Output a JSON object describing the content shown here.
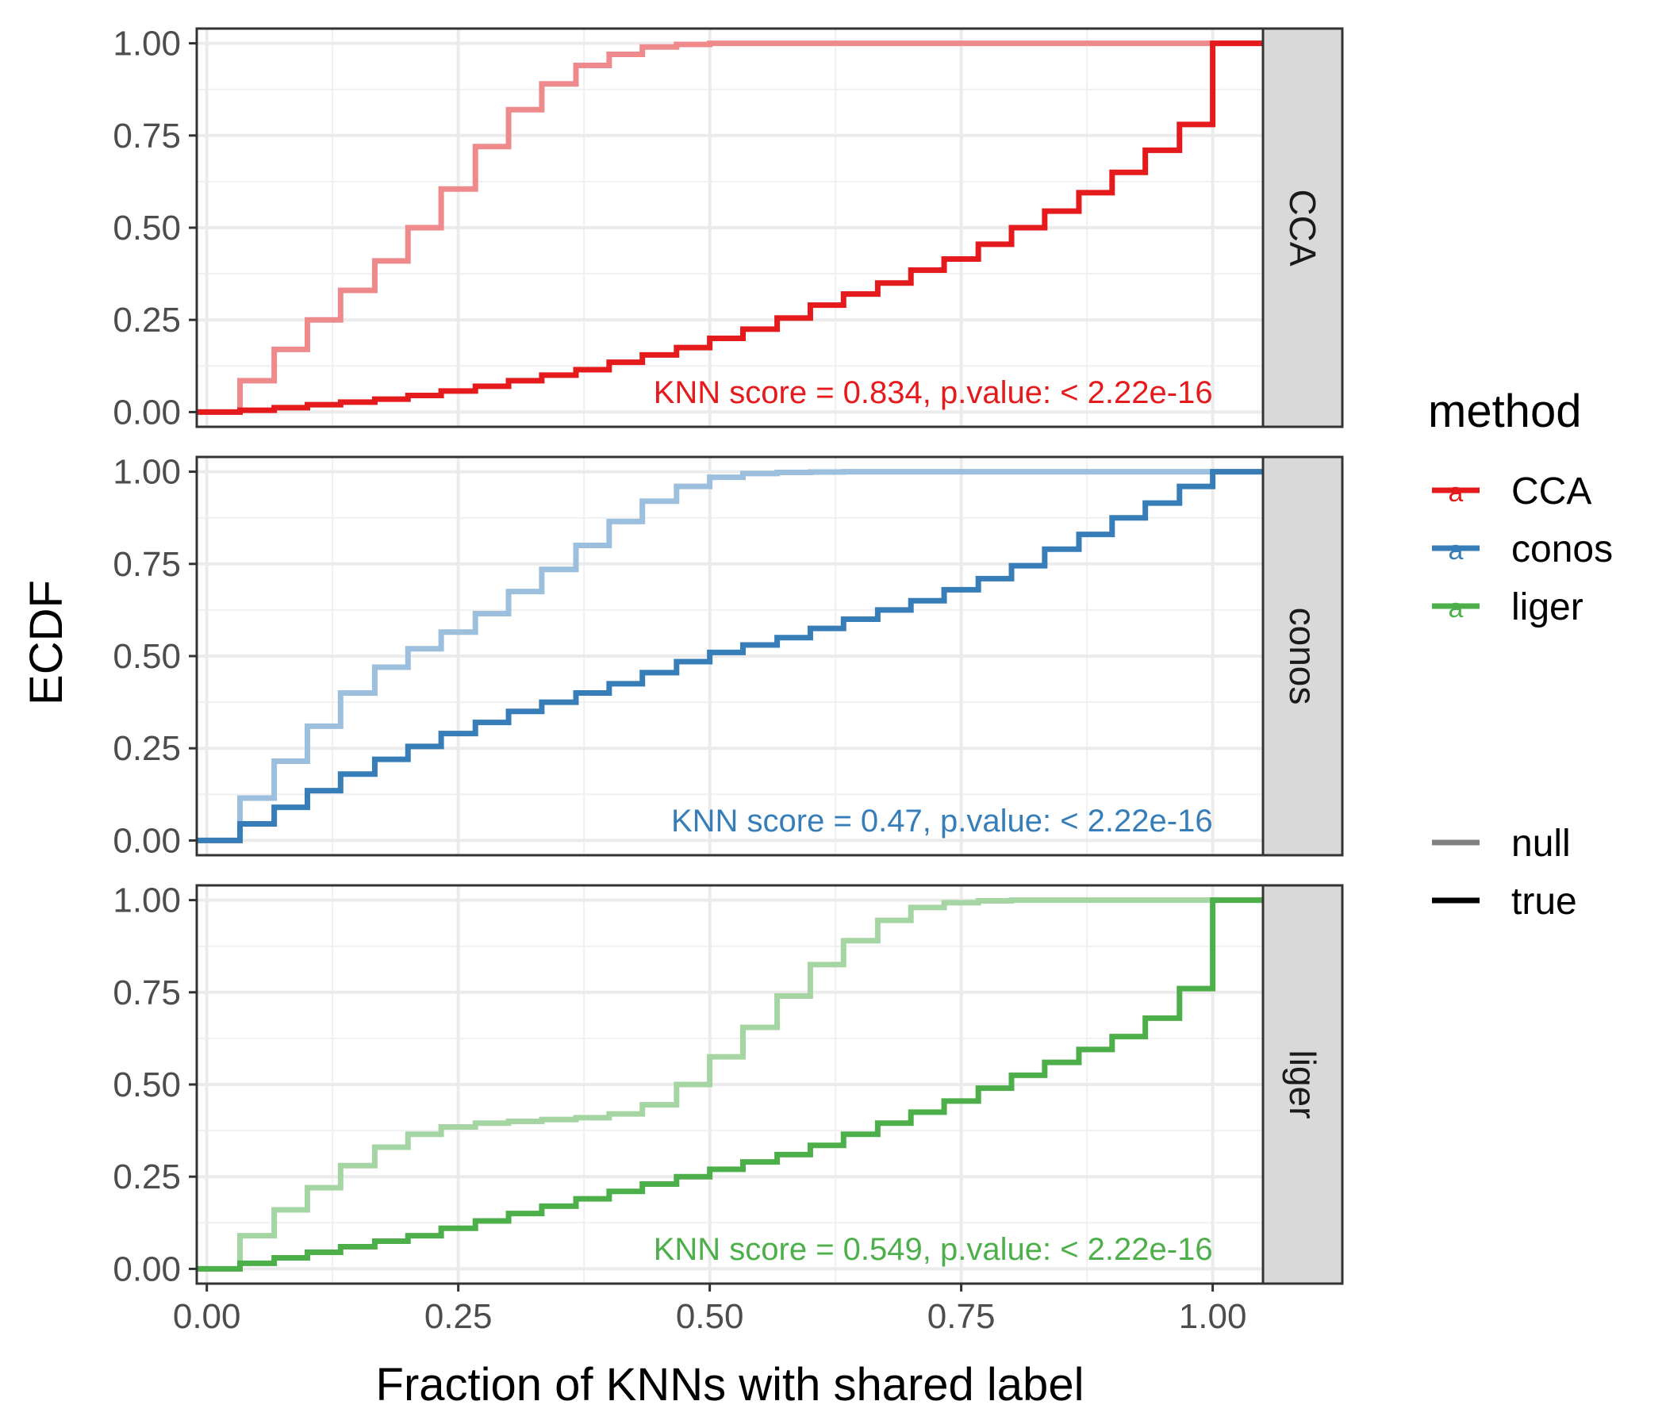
{
  "chart_data": {
    "type": "line",
    "subtype": "step-ecdf-faceted",
    "xlabel": "Fraction of KNNs with shared label",
    "ylabel": "ECDF",
    "xlim": [
      -0.01,
      1.05
    ],
    "ylim": [
      -0.04,
      1.04
    ],
    "x_ticks": [
      "0.00",
      "0.25",
      "0.50",
      "0.75",
      "1.00"
    ],
    "y_ticks": [
      "0.00",
      "0.25",
      "0.50",
      "0.75",
      "1.00"
    ],
    "grid": true,
    "legend": {
      "placement": "right",
      "title": "method",
      "color_items": [
        {
          "label": "CCA",
          "color": "#E41A1C"
        },
        {
          "label": "conos",
          "color": "#377EB8"
        },
        {
          "label": "liger",
          "color": "#4DAF4A"
        }
      ],
      "linetype_items": [
        {
          "label": "null",
          "color": "#808080"
        },
        {
          "label": "true",
          "color": "#000000"
        }
      ]
    },
    "facets": [
      {
        "strip": "CCA",
        "color": "#E41A1C",
        "null_color": "#EE8A8B",
        "annotation": "KNN score = 0.834, p.value: < 2.22e-16",
        "null": {
          "x": [
            0.033,
            0.067,
            0.1,
            0.133,
            0.167,
            0.2,
            0.233,
            0.267,
            0.3,
            0.333,
            0.367,
            0.4,
            0.433,
            0.467,
            0.5
          ],
          "y": [
            0.085,
            0.17,
            0.25,
            0.33,
            0.41,
            0.5,
            0.605,
            0.72,
            0.82,
            0.89,
            0.94,
            0.97,
            0.99,
            0.997,
            1.0
          ]
        },
        "true": {
          "x": [
            0.033,
            0.067,
            0.1,
            0.133,
            0.167,
            0.2,
            0.233,
            0.267,
            0.3,
            0.333,
            0.367,
            0.4,
            0.433,
            0.467,
            0.5,
            0.533,
            0.567,
            0.6,
            0.633,
            0.667,
            0.7,
            0.733,
            0.767,
            0.8,
            0.833,
            0.867,
            0.9,
            0.933,
            0.967,
            1.0
          ],
          "y": [
            0.005,
            0.012,
            0.02,
            0.027,
            0.035,
            0.045,
            0.057,
            0.07,
            0.085,
            0.1,
            0.115,
            0.135,
            0.155,
            0.175,
            0.2,
            0.225,
            0.255,
            0.29,
            0.32,
            0.35,
            0.385,
            0.415,
            0.455,
            0.5,
            0.545,
            0.595,
            0.65,
            0.71,
            0.78,
            1.0
          ]
        }
      },
      {
        "strip": "conos",
        "color": "#377EB8",
        "null_color": "#9BBFDC",
        "annotation": "KNN score = 0.47, p.value: < 2.22e-16",
        "null": {
          "x": [
            0.033,
            0.067,
            0.1,
            0.133,
            0.167,
            0.2,
            0.233,
            0.267,
            0.3,
            0.333,
            0.367,
            0.4,
            0.433,
            0.467,
            0.5,
            0.533,
            0.567,
            0.6,
            0.633
          ],
          "y": [
            0.115,
            0.215,
            0.31,
            0.4,
            0.47,
            0.52,
            0.565,
            0.615,
            0.675,
            0.735,
            0.8,
            0.865,
            0.92,
            0.96,
            0.985,
            0.995,
            0.998,
            0.999,
            1.0
          ]
        },
        "true": {
          "x": [
            0.033,
            0.067,
            0.1,
            0.133,
            0.167,
            0.2,
            0.233,
            0.267,
            0.3,
            0.333,
            0.367,
            0.4,
            0.433,
            0.467,
            0.5,
            0.533,
            0.567,
            0.6,
            0.633,
            0.667,
            0.7,
            0.733,
            0.767,
            0.8,
            0.833,
            0.867,
            0.9,
            0.933,
            0.967,
            1.0
          ],
          "y": [
            0.045,
            0.09,
            0.135,
            0.18,
            0.22,
            0.255,
            0.29,
            0.32,
            0.35,
            0.375,
            0.4,
            0.425,
            0.455,
            0.485,
            0.51,
            0.53,
            0.55,
            0.575,
            0.6,
            0.625,
            0.65,
            0.68,
            0.71,
            0.745,
            0.79,
            0.83,
            0.875,
            0.915,
            0.96,
            1.0
          ]
        }
      },
      {
        "strip": "liger",
        "color": "#4DAF4A",
        "null_color": "#A6D5A4",
        "annotation": "KNN score = 0.549, p.value: < 2.22e-16",
        "null": {
          "x": [
            0.033,
            0.067,
            0.1,
            0.133,
            0.167,
            0.2,
            0.233,
            0.267,
            0.3,
            0.333,
            0.367,
            0.4,
            0.433,
            0.467,
            0.5,
            0.533,
            0.567,
            0.6,
            0.633,
            0.667,
            0.7,
            0.733,
            0.767,
            0.8
          ],
          "y": [
            0.09,
            0.16,
            0.22,
            0.28,
            0.33,
            0.365,
            0.385,
            0.395,
            0.4,
            0.405,
            0.41,
            0.42,
            0.445,
            0.5,
            0.575,
            0.655,
            0.74,
            0.825,
            0.89,
            0.945,
            0.98,
            0.993,
            0.998,
            1.0
          ]
        },
        "true": {
          "x": [
            0.033,
            0.067,
            0.1,
            0.133,
            0.167,
            0.2,
            0.233,
            0.267,
            0.3,
            0.333,
            0.367,
            0.4,
            0.433,
            0.467,
            0.5,
            0.533,
            0.567,
            0.6,
            0.633,
            0.667,
            0.7,
            0.733,
            0.767,
            0.8,
            0.833,
            0.867,
            0.9,
            0.933,
            0.967,
            1.0
          ],
          "y": [
            0.015,
            0.03,
            0.045,
            0.06,
            0.075,
            0.09,
            0.11,
            0.13,
            0.15,
            0.17,
            0.19,
            0.21,
            0.23,
            0.25,
            0.27,
            0.29,
            0.31,
            0.335,
            0.365,
            0.395,
            0.425,
            0.455,
            0.49,
            0.525,
            0.56,
            0.595,
            0.63,
            0.68,
            0.76,
            1.0
          ]
        }
      }
    ]
  }
}
